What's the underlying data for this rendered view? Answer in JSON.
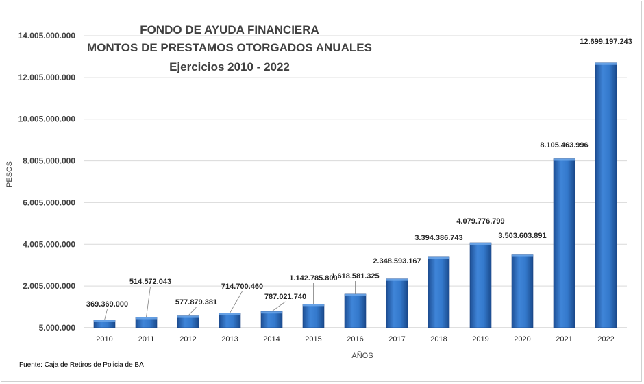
{
  "chart_data": {
    "type": "bar",
    "title": "FONDO DE AYUDA FINANCIERA",
    "subtitle": "MONTOS DE PRESTAMOS OTORGADOS  ANUALES",
    "subtitle2": "Ejercicios  2010 - 2022",
    "xlabel": "AÑOS",
    "ylabel": "PESOS",
    "categories": [
      "2010",
      "2011",
      "2012",
      "2013",
      "2014",
      "2015",
      "2016",
      "2017",
      "2018",
      "2019",
      "2020",
      "2021",
      "2022"
    ],
    "values": [
      369369000,
      514572043,
      577879381,
      714700460,
      787021740,
      1142785800,
      1618581325,
      2348593167,
      3394386743,
      4079776799,
      3503603891,
      8105463996,
      12699197243
    ],
    "value_labels": [
      "369.369.000",
      "514.572.043",
      "577.879.381",
      "714.700.460",
      "787.021.740",
      "1.142.785.800",
      "1.618.581.325",
      "2.348.593.167",
      "3.394.386.743",
      "4.079.776.799",
      "3.503.603.891",
      "8.105.463.996",
      "12.699.197.243"
    ],
    "yticks": [
      5000000,
      2005000000,
      4005000000,
      6005000000,
      8005000000,
      10005000000,
      12005000000,
      14005000000
    ],
    "ytick_labels": [
      "5.000.000",
      "2.005.000.000",
      "4.005.000.000",
      "6.005.000.000",
      "8.005.000.000",
      "10.005.000.000",
      "12.005.000.000",
      "14.005.000.000"
    ],
    "ylim": [
      5000000,
      14005000000
    ],
    "grid": true,
    "bar_color": "#2E6FC4",
    "source": "Fuente: Caja de Retiros de Policia de BA"
  }
}
